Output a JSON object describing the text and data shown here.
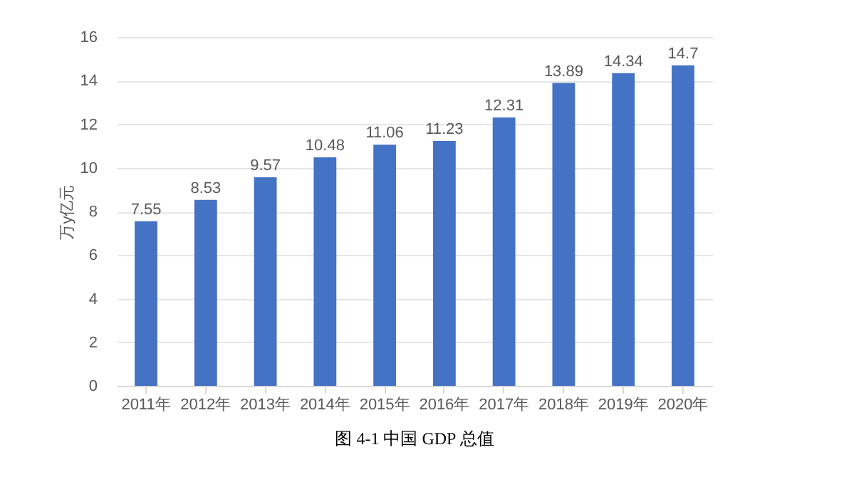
{
  "chart_data": {
    "type": "bar",
    "title": "图 4-1  中国 GDP 总值",
    "ylabel": "万y亿元",
    "categories": [
      "2011年",
      "2012年",
      "2013年",
      "2014年",
      "2015年",
      "2016年",
      "2017年",
      "2018年",
      "2019年",
      "2020年"
    ],
    "values": [
      7.55,
      8.53,
      9.57,
      10.48,
      11.06,
      11.23,
      12.31,
      13.89,
      14.34,
      14.7
    ],
    "color": "#4472c4",
    "ylim": [
      0,
      16
    ],
    "yticks": [
      0,
      2,
      4,
      6,
      8,
      10,
      12,
      14,
      16
    ],
    "grid": "y",
    "data_labels": true
  }
}
